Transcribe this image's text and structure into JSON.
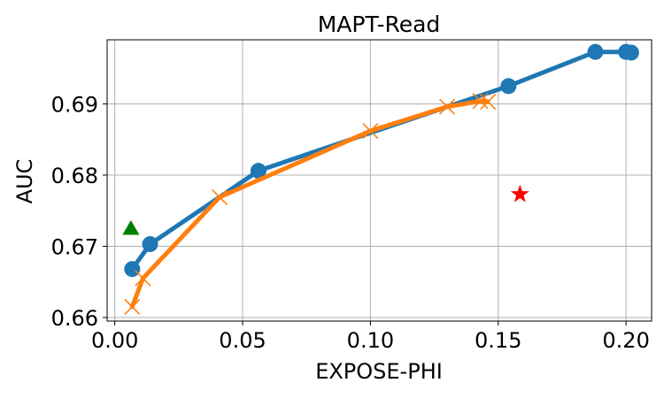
{
  "chart_data": {
    "type": "line",
    "title": "MAPT-Read",
    "xlabel": "EXPOSE-PHI",
    "ylabel": "AUC",
    "xlim": [
      -0.003,
      0.21
    ],
    "ylim": [
      0.6595,
      0.699
    ],
    "grid": true,
    "x_ticks": [
      {
        "value": 0.0,
        "label": "0.00"
      },
      {
        "value": 0.05,
        "label": "0.05"
      },
      {
        "value": 0.1,
        "label": "0.10"
      },
      {
        "value": 0.15,
        "label": "0.15"
      },
      {
        "value": 0.2,
        "label": "0.20"
      }
    ],
    "y_ticks": [
      {
        "value": 0.66,
        "label": "0.66"
      },
      {
        "value": 0.67,
        "label": "0.67"
      },
      {
        "value": 0.68,
        "label": "0.68"
      },
      {
        "value": 0.69,
        "label": "0.69"
      }
    ],
    "series": [
      {
        "color": "#1f77b4",
        "marker": "circle",
        "x": [
          0.0068,
          0.0138,
          0.0562,
          0.154,
          0.188,
          0.2,
          0.202
        ],
        "y": [
          0.6668,
          0.6703,
          0.6806,
          0.6925,
          0.6973,
          0.6973,
          0.6972
        ]
      },
      {
        "color": "#ff7f0e",
        "marker": "x",
        "x": [
          0.0068,
          0.011,
          0.041,
          0.1,
          0.13,
          0.143,
          0.146
        ],
        "y": [
          0.6615,
          0.6655,
          0.6769,
          0.6862,
          0.6896,
          0.6904,
          0.6903
        ]
      }
    ],
    "points": [
      {
        "color": "#008000",
        "marker": "triangle",
        "x": 0.0063,
        "y": 0.6723
      },
      {
        "color": "#ff0000",
        "marker": "star",
        "x": 0.1585,
        "y": 0.6773
      }
    ]
  }
}
